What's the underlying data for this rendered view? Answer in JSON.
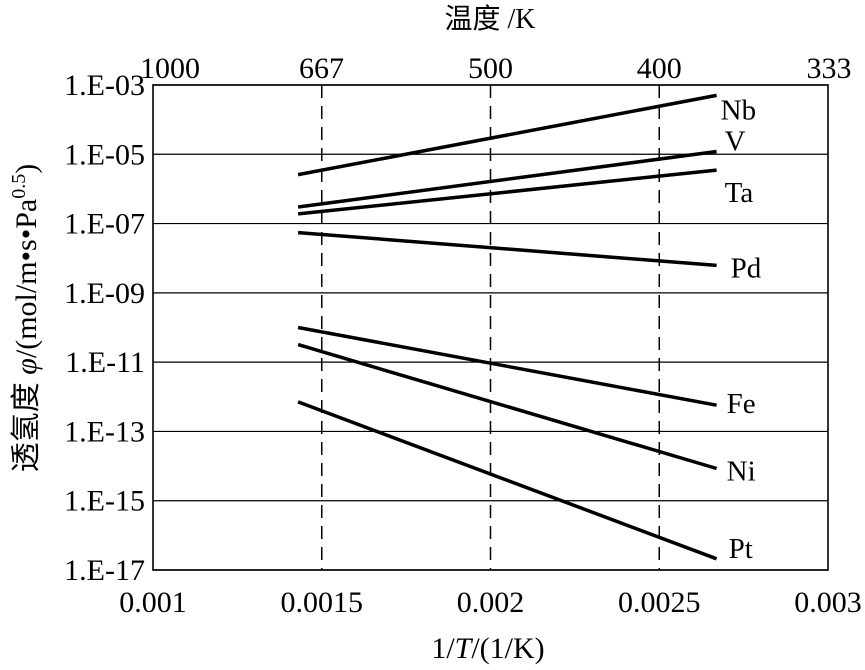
{
  "chart_data": {
    "type": "line",
    "x2label": "温度 /K",
    "xlabel": {
      "prefix": "1/",
      "symbol": "T",
      "suffix": "/(1/K)"
    },
    "ylabel": {
      "prefix": "透氢度 ",
      "symbol": "φ",
      "unit": "/(mol/m•s•Pa",
      "exponent": "0.5",
      "close": ")"
    },
    "xscale": "linear",
    "xlim": [
      0.001,
      0.003
    ],
    "xticks": [
      0.001,
      0.0015,
      0.002,
      0.0025,
      0.003
    ],
    "xtick_labels": [
      "0.001",
      "0.0015",
      "0.002",
      "0.0025",
      "0.003"
    ],
    "x2ticks_temperature_K": [
      1000,
      667,
      500,
      400,
      333
    ],
    "x2tick_labels": [
      "1000",
      "667",
      "500",
      "400",
      "333"
    ],
    "yscale": "log",
    "ylim": [
      1e-17,
      0.001
    ],
    "yticks": [
      0.001,
      1e-05,
      1e-07,
      1e-09,
      1e-11,
      1e-13,
      1e-15,
      1e-17
    ],
    "ytick_labels": [
      "1.E-03",
      "1.E-05",
      "1.E-07",
      "1.E-09",
      "1.E-11",
      "1.E-13",
      "1.E-15",
      "1.E-17"
    ],
    "grid_y": true,
    "grid_x": false,
    "dashed_vlines_x": [
      0.0015,
      0.002,
      0.0025
    ],
    "legend": "none",
    "x": [
      0.00143,
      0.00267
    ],
    "series": [
      {
        "name": "Nb",
        "values": [
          2.6e-06,
          0.0005
        ]
      },
      {
        "name": "V",
        "values": [
          3e-07,
          1.2e-05
        ]
      },
      {
        "name": "Ta",
        "values": [
          1.9e-07,
          3.5e-06
        ]
      },
      {
        "name": "Pd",
        "values": [
          5.5e-08,
          6.2e-09
        ]
      },
      {
        "name": "Fe",
        "values": [
          1e-10,
          5.7e-13
        ]
      },
      {
        "name": "Ni",
        "values": [
          3.2e-11,
          8.5e-15
        ]
      },
      {
        "name": "Pt",
        "values": [
          7.1e-13,
          2.1e-17
        ]
      }
    ],
    "colors": {
      "series": "#000000",
      "grid": "#000000",
      "axes": "#000000",
      "background": "#ffffff"
    }
  }
}
